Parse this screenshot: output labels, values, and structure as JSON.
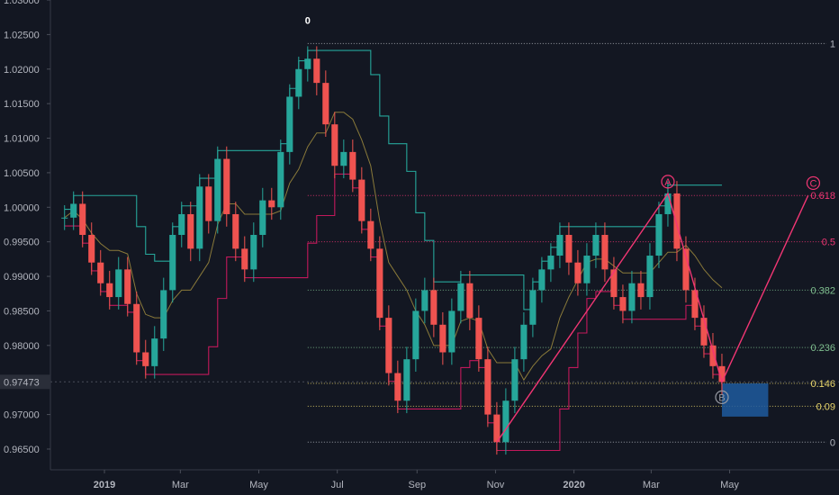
{
  "chart_data": {
    "type": "line",
    "title": "",
    "xlabel": "",
    "ylabel": "",
    "x_ticks": [
      "2019",
      "Mar",
      "May",
      "Jul",
      "Sep",
      "Nov",
      "2020",
      "Mar",
      "May"
    ],
    "y_ticks": [
      "1.03000",
      "1.02500",
      "1.02000",
      "1.01500",
      "1.01000",
      "1.00500",
      "1.00000",
      "0.99500",
      "0.99000",
      "0.98500",
      "0.98000",
      "0.97000",
      "0.96500"
    ],
    "ylim": [
      0.962,
      1.03
    ],
    "current_price": "0.97473",
    "price_series": [
      {
        "t": "2018-12-01",
        "v": 0.9985
      },
      {
        "t": "2018-12-08",
        "v": 1.0005
      },
      {
        "t": "2018-12-15",
        "v": 0.996
      },
      {
        "t": "2018-12-22",
        "v": 0.992
      },
      {
        "t": "2018-12-29",
        "v": 0.989
      },
      {
        "t": "2019-01-05",
        "v": 0.987
      },
      {
        "t": "2019-01-12",
        "v": 0.991
      },
      {
        "t": "2019-01-19",
        "v": 0.986
      },
      {
        "t": "2019-01-26",
        "v": 0.979
      },
      {
        "t": "2019-02-02",
        "v": 0.977
      },
      {
        "t": "2019-02-09",
        "v": 0.981
      },
      {
        "t": "2019-02-16",
        "v": 0.988
      },
      {
        "t": "2019-02-23",
        "v": 0.996
      },
      {
        "t": "2019-03-02",
        "v": 0.999
      },
      {
        "t": "2019-03-09",
        "v": 0.994
      },
      {
        "t": "2019-03-16",
        "v": 1.003
      },
      {
        "t": "2019-03-23",
        "v": 0.998
      },
      {
        "t": "2019-03-30",
        "v": 1.007
      },
      {
        "t": "2019-04-06",
        "v": 0.999
      },
      {
        "t": "2019-04-13",
        "v": 0.994
      },
      {
        "t": "2019-04-20",
        "v": 0.991
      },
      {
        "t": "2019-04-27",
        "v": 0.996
      },
      {
        "t": "2019-05-04",
        "v": 1.001
      },
      {
        "t": "2019-05-11",
        "v": 1.0
      },
      {
        "t": "2019-05-18",
        "v": 1.008
      },
      {
        "t": "2019-05-25",
        "v": 1.016
      },
      {
        "t": "2019-06-01",
        "v": 1.02
      },
      {
        "t": "2019-06-08",
        "v": 1.0215
      },
      {
        "t": "2019-06-15",
        "v": 1.018
      },
      {
        "t": "2019-06-22",
        "v": 1.012
      },
      {
        "t": "2019-06-29",
        "v": 1.006
      },
      {
        "t": "2019-07-06",
        "v": 1.008
      },
      {
        "t": "2019-07-13",
        "v": 1.004
      },
      {
        "t": "2019-07-20",
        "v": 0.998
      },
      {
        "t": "2019-07-27",
        "v": 0.994
      },
      {
        "t": "2019-08-03",
        "v": 0.984
      },
      {
        "t": "2019-08-10",
        "v": 0.976
      },
      {
        "t": "2019-08-17",
        "v": 0.972
      },
      {
        "t": "2019-08-24",
        "v": 0.978
      },
      {
        "t": "2019-08-31",
        "v": 0.985
      },
      {
        "t": "2019-09-07",
        "v": 0.988
      },
      {
        "t": "2019-09-14",
        "v": 0.983
      },
      {
        "t": "2019-09-21",
        "v": 0.979
      },
      {
        "t": "2019-09-28",
        "v": 0.985
      },
      {
        "t": "2019-10-05",
        "v": 0.989
      },
      {
        "t": "2019-10-12",
        "v": 0.984
      },
      {
        "t": "2019-10-19",
        "v": 0.978
      },
      {
        "t": "2019-10-26",
        "v": 0.97
      },
      {
        "t": "2019-11-02",
        "v": 0.966
      },
      {
        "t": "2019-11-09",
        "v": 0.972
      },
      {
        "t": "2019-11-16",
        "v": 0.978
      },
      {
        "t": "2019-11-23",
        "v": 0.983
      },
      {
        "t": "2019-11-30",
        "v": 0.988
      },
      {
        "t": "2019-12-07",
        "v": 0.991
      },
      {
        "t": "2019-12-14",
        "v": 0.993
      },
      {
        "t": "2019-12-21",
        "v": 0.996
      },
      {
        "t": "2019-12-28",
        "v": 0.992
      },
      {
        "t": "2020-01-04",
        "v": 0.989
      },
      {
        "t": "2020-01-11",
        "v": 0.993
      },
      {
        "t": "2020-01-18",
        "v": 0.996
      },
      {
        "t": "2020-01-25",
        "v": 0.991
      },
      {
        "t": "2020-02-01",
        "v": 0.987
      },
      {
        "t": "2020-02-08",
        "v": 0.985
      },
      {
        "t": "2020-02-15",
        "v": 0.989
      },
      {
        "t": "2020-02-22",
        "v": 0.987
      },
      {
        "t": "2020-02-29",
        "v": 0.993
      },
      {
        "t": "2020-03-07",
        "v": 0.999
      },
      {
        "t": "2020-03-14",
        "v": 1.002
      },
      {
        "t": "2020-03-21",
        "v": 0.994
      },
      {
        "t": "2020-03-28",
        "v": 0.988
      },
      {
        "t": "2020-04-04",
        "v": 0.984
      },
      {
        "t": "2020-04-11",
        "v": 0.98
      },
      {
        "t": "2020-04-18",
        "v": 0.977
      },
      {
        "t": "2020-04-25",
        "v": 0.9747
      }
    ],
    "fib_levels": [
      {
        "label": "1",
        "price": 1.0237,
        "color": "#b2b5be"
      },
      {
        "label": "0.618",
        "price": 1.0017,
        "color": "#f23674"
      },
      {
        "label": "0.5",
        "price": 0.995,
        "color": "#f23674"
      },
      {
        "label": "0.382",
        "price": 0.988,
        "color": "#7fbf8f"
      },
      {
        "label": "0.236",
        "price": 0.9797,
        "color": "#7fbf8f"
      },
      {
        "label": "0.146",
        "price": 0.9745,
        "color": "#e9d66b"
      },
      {
        "label": "0.09",
        "price": 0.9712,
        "color": "#e9d66b"
      },
      {
        "label": "0",
        "price": 0.966,
        "color": "#b2b5be"
      }
    ],
    "waves": [
      {
        "label": "0",
        "t": "2019-06-08",
        "price": 1.0255
      },
      {
        "label": "A",
        "t": "2020-03-14",
        "price": 1.0037
      },
      {
        "label": "B",
        "t": "2020-04-25",
        "price": 0.9725
      },
      {
        "label": "C",
        "t": "2020-07-05",
        "price": 1.0035
      }
    ],
    "wave_path": [
      {
        "t": "2019-11-02",
        "price": 0.966
      },
      {
        "t": "2020-03-14",
        "price": 1.002
      },
      {
        "t": "2020-04-25",
        "price": 0.9747
      },
      {
        "t": "2020-07-01",
        "price": 1.0017
      }
    ],
    "zone": {
      "t0": "2020-04-25",
      "t1": "2020-05-31",
      "p_high": 0.9745,
      "p_low": 0.9697
    },
    "colors": {
      "bg": "#131722",
      "up": "#26a69a",
      "down": "#ef5350",
      "accent": "#f23674",
      "zone": "#1e5a9e",
      "axis": "#b2b5be"
    }
  }
}
